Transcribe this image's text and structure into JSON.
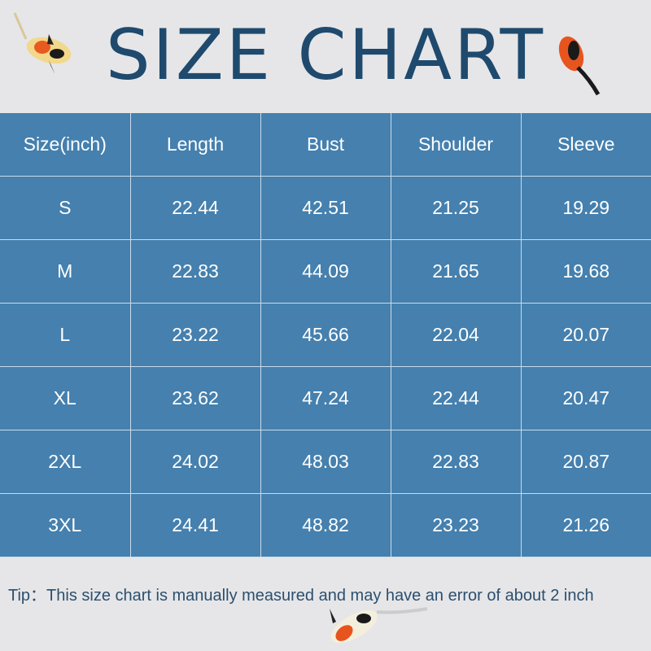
{
  "title": "SIZE CHART",
  "table": {
    "headers": [
      "Size(inch)",
      "Length",
      "Bust",
      "Shoulder",
      "Sleeve"
    ],
    "rows": [
      [
        "S",
        "22.44",
        "42.51",
        "21.25",
        "19.29"
      ],
      [
        "M",
        "22.83",
        "44.09",
        "21.65",
        "19.68"
      ],
      [
        "L",
        "23.22",
        "45.66",
        "22.04",
        "20.07"
      ],
      [
        "XL",
        "23.62",
        "47.24",
        "22.44",
        "20.47"
      ],
      [
        "2XL",
        "24.02",
        "48.03",
        "22.83",
        "20.87"
      ],
      [
        "3XL",
        "24.41",
        "48.82",
        "23.23",
        "21.26"
      ]
    ]
  },
  "tip": "Tip：This size chart is manually measured and may have an error of about 2 inch",
  "colors": {
    "background": "#e6e6e8",
    "table": "#4580ae",
    "title": "#1f4a6e"
  },
  "icons": [
    "koi-fish-icon"
  ]
}
